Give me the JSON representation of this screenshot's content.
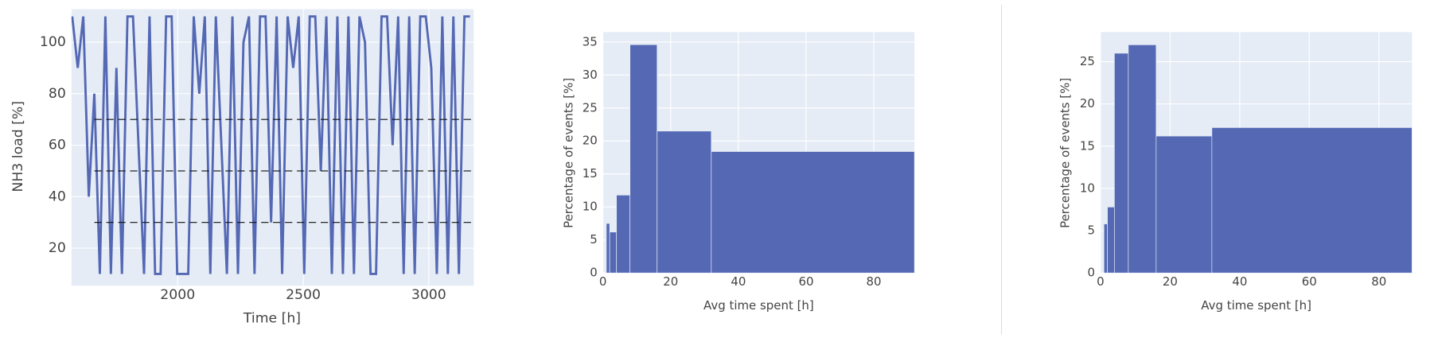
{
  "chart_data": [
    {
      "type": "line",
      "ylabel": "NH3 load [%]",
      "xlabel": "Time [h]",
      "x": [
        1580,
        1602,
        1624,
        1646,
        1668,
        1690,
        1712,
        1734,
        1756,
        1778,
        1800,
        1822,
        1844,
        1866,
        1888,
        1910,
        1932,
        1954,
        1976,
        1998,
        2020,
        2042,
        2064,
        2086,
        2108,
        2130,
        2152,
        2174,
        2196,
        2218,
        2240,
        2262,
        2284,
        2306,
        2328,
        2350,
        2372,
        2394,
        2416,
        2438,
        2460,
        2482,
        2504,
        2526,
        2548,
        2570,
        2592,
        2614,
        2636,
        2658,
        2680,
        2702,
        2724,
        2746,
        2768,
        2790,
        2812,
        2834,
        2856,
        2878,
        2900,
        2922,
        2944,
        2966,
        2988,
        3010,
        3032,
        3054,
        3076,
        3098,
        3120,
        3142,
        3164
      ],
      "values": [
        110,
        90,
        110,
        40,
        80,
        10,
        110,
        10,
        90,
        10,
        110,
        110,
        60,
        10,
        110,
        10,
        10,
        110,
        110,
        10,
        10,
        10,
        110,
        80,
        110,
        10,
        110,
        60,
        10,
        110,
        10,
        100,
        110,
        10,
        110,
        110,
        30,
        110,
        10,
        110,
        90,
        110,
        10,
        110,
        110,
        50,
        110,
        10,
        110,
        10,
        110,
        10,
        110,
        100,
        10,
        10,
        110,
        110,
        60,
        110,
        10,
        110,
        10,
        110,
        110,
        90,
        10,
        110,
        10,
        110,
        10,
        110,
        110
      ],
      "color": "#5468b4",
      "hlines": [
        30,
        50,
        70
      ],
      "xlim": [
        1577,
        3179
      ],
      "xticks": [
        2000,
        2500,
        3000
      ],
      "ylim": [
        5.4,
        112.8
      ],
      "yticks": [
        20,
        40,
        60,
        80,
        100
      ],
      "grid": true
    },
    {
      "type": "histogram",
      "ylabel": "Percentage of events [%]",
      "xlabel": "Avg time spent [h]",
      "bins": [
        1,
        2,
        4,
        8,
        16,
        32,
        92
      ],
      "counts": [
        7.5,
        6.2,
        11.8,
        34.6,
        21.5,
        18.4
      ],
      "color": "#5468b4",
      "xlim": [
        0,
        92
      ],
      "xticks": [
        0,
        20,
        40,
        60,
        80
      ],
      "ylim": [
        0,
        36.5
      ],
      "yticks": [
        0,
        5,
        10,
        15,
        20,
        25,
        30,
        35
      ],
      "grid": true
    },
    {
      "type": "histogram",
      "ylabel": "Percentage of events [%]",
      "xlabel": "Avg time spent [h]",
      "bins": [
        1,
        2,
        4,
        8,
        16,
        32,
        92
      ],
      "counts": [
        5.8,
        7.8,
        26,
        27,
        16.2,
        17.2
      ],
      "color": "#5468b4",
      "xlim": [
        0,
        89.5
      ],
      "xticks": [
        0,
        20,
        40,
        60,
        80
      ],
      "ylim": [
        0,
        28.5
      ],
      "yticks": [
        0,
        5,
        10,
        15,
        20,
        25
      ],
      "grid": true
    }
  ]
}
